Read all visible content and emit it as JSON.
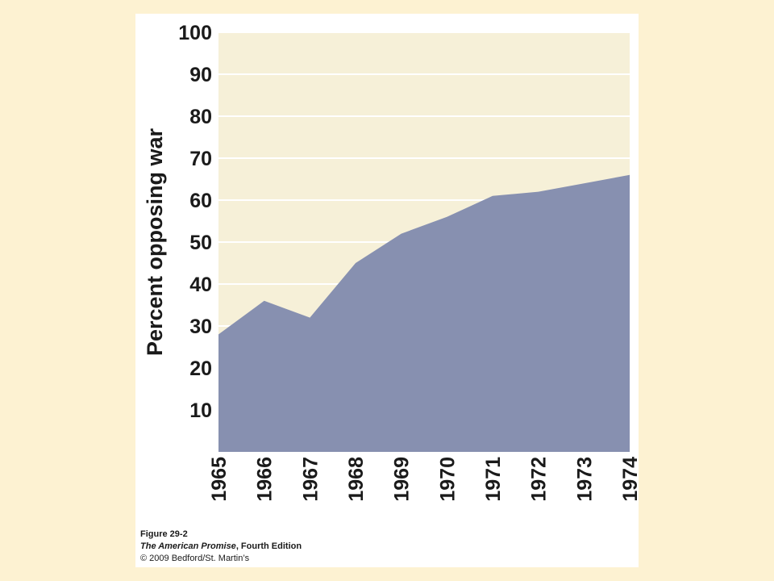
{
  "colors": {
    "page_background": "#fdf2d2",
    "card_background": "#ffffff",
    "plot_background": "#f6f0d8",
    "area_fill": "#8790b0",
    "gridline": "#ffffff",
    "text": "#1a1a1a"
  },
  "chart_data": {
    "type": "area",
    "ylabel": "Percent opposing war",
    "xlabel": "",
    "x": [
      "1965",
      "1966",
      "1967",
      "1968",
      "1969",
      "1970",
      "1971",
      "1972",
      "1973",
      "1974"
    ],
    "values": [
      28,
      36,
      32,
      45,
      52,
      56,
      61,
      62,
      64,
      66
    ],
    "ylim": [
      0,
      100
    ],
    "yticks": [
      10,
      20,
      30,
      40,
      50,
      60,
      70,
      80,
      90,
      100
    ],
    "grid": true,
    "x_tick_orientation": "vertical"
  },
  "caption": {
    "figure": "Figure 29-2",
    "book_title": "The American Promise",
    "book_edition": ", Fourth Edition",
    "copyright": "© 2009 Bedford/St. Martin’s"
  }
}
